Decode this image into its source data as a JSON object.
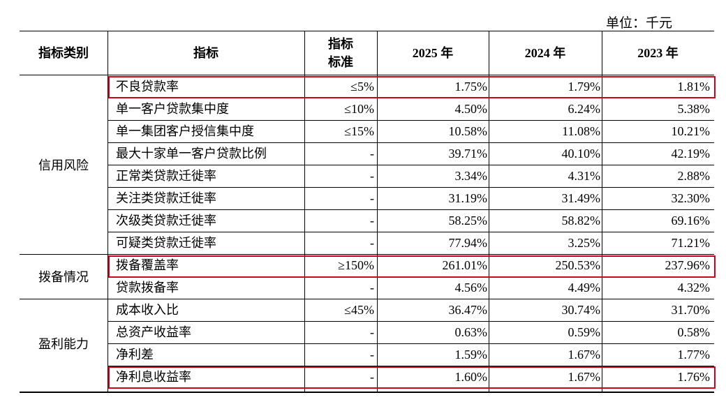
{
  "unit_label": "单位：千元",
  "header": {
    "category": "指标类别",
    "indicator": "指标",
    "standard": "指标\n标准",
    "y2025": "2025 年",
    "y2024": "2024 年",
    "y2023": "2023 年"
  },
  "groups": [
    {
      "name": "信用风险"
    },
    {
      "name": "拨备情况"
    },
    {
      "name": "盈利能力"
    }
  ],
  "rows": [
    {
      "name": "不良贷款率",
      "standard": "≤5%",
      "y2025": "1.75%",
      "y2024": "1.79%",
      "y2023": "1.81%"
    },
    {
      "name": "单一客户贷款集中度",
      "standard": "≤10%",
      "y2025": "4.50%",
      "y2024": "6.24%",
      "y2023": "5.38%"
    },
    {
      "name": "单一集团客户授信集中度",
      "standard": "≤15%",
      "y2025": "10.58%",
      "y2024": "11.08%",
      "y2023": "10.21%"
    },
    {
      "name": "最大十家单一客户贷款比例",
      "standard": "-",
      "y2025": "39.71%",
      "y2024": "40.10%",
      "y2023": "42.19%"
    },
    {
      "name": "正常类贷款迁徙率",
      "standard": "-",
      "y2025": "3.34%",
      "y2024": "4.31%",
      "y2023": "2.88%"
    },
    {
      "name": "关注类贷款迁徙率",
      "standard": "-",
      "y2025": "31.19%",
      "y2024": "31.49%",
      "y2023": "32.30%"
    },
    {
      "name": "次级类贷款迁徙率",
      "standard": "-",
      "y2025": "58.25%",
      "y2024": "58.82%",
      "y2023": "69.16%"
    },
    {
      "name": "可疑类贷款迁徙率",
      "standard": "-",
      "y2025": "77.94%",
      "y2024": "3.25%",
      "y2023": "71.21%"
    },
    {
      "name": "拨备覆盖率",
      "standard": "≥150%",
      "y2025": "261.01%",
      "y2024": "250.53%",
      "y2023": "237.96%"
    },
    {
      "name": "贷款拨备率",
      "standard": "-",
      "y2025": "4.56%",
      "y2024": "4.49%",
      "y2023": "4.32%"
    },
    {
      "name": "成本收入比",
      "standard": "≤45%",
      "y2025": "36.47%",
      "y2024": "30.74%",
      "y2023": "31.70%"
    },
    {
      "name": "总资产收益率",
      "standard": "-",
      "y2025": "0.63%",
      "y2024": "0.59%",
      "y2023": "0.58%"
    },
    {
      "name": "净利差",
      "standard": "-",
      "y2025": "1.59%",
      "y2024": "1.67%",
      "y2023": "1.77%"
    },
    {
      "name": "净利息收益率",
      "standard": "-",
      "y2025": "1.60%",
      "y2024": "1.67%",
      "y2023": "1.76%"
    }
  ],
  "highlight_color": "#d0021b"
}
